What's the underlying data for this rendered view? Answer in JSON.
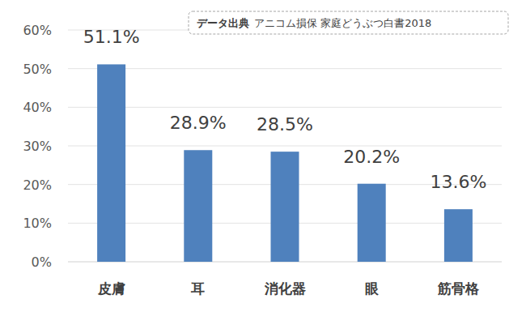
{
  "chart_data": {
    "type": "bar",
    "annotations": [
      "データ出典",
      "アニコム損保 家庭どうぶつ白書2018"
    ],
    "categories": [
      "皮膚",
      "耳",
      "消化器",
      "眼",
      "筋骨格"
    ],
    "values": [
      51.1,
      28.9,
      28.5,
      20.2,
      13.6
    ],
    "value_labels": [
      "51.1%",
      "28.9%",
      "28.5%",
      "20.2%",
      "13.6%"
    ],
    "data_labels": true,
    "color": "#4f81bd",
    "ylim": [
      0,
      60
    ],
    "yticks": [
      {
        "value": 0,
        "label": "0%"
      },
      {
        "value": 10,
        "label": "10%"
      },
      {
        "value": 20,
        "label": "20%"
      },
      {
        "value": 30,
        "label": "30%"
      },
      {
        "value": 40,
        "label": "40%"
      },
      {
        "value": 50,
        "label": "50%"
      },
      {
        "value": 60,
        "label": "60%"
      }
    ],
    "grid": true
  }
}
